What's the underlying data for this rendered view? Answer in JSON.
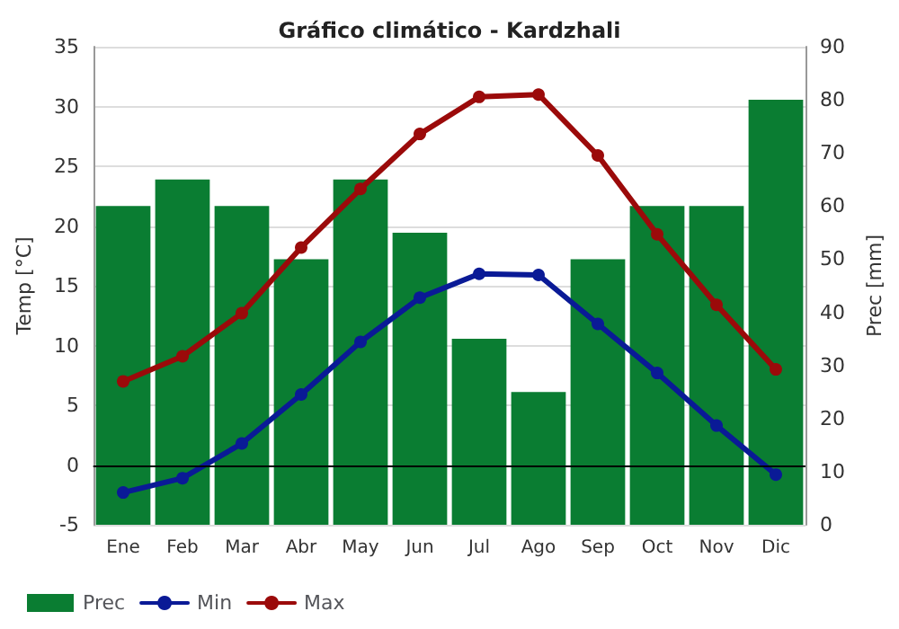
{
  "chart_data": {
    "type": "line",
    "title": "Gráfico climático - Kardzhali",
    "ylabel": "Temp [°C]",
    "y2label": "Prec [mm]",
    "categories": [
      "Ene",
      "Feb",
      "Mar",
      "Abr",
      "May",
      "Jun",
      "Jul",
      "Ago",
      "Sep",
      "Oct",
      "Nov",
      "Dic"
    ],
    "series": [
      {
        "name": "Prec",
        "type": "bar",
        "axis": "y2",
        "color": "#0a7d32",
        "values": [
          60,
          65,
          60,
          50,
          65,
          55,
          35,
          25,
          50,
          60,
          60,
          80
        ]
      },
      {
        "name": "Min",
        "color": "#0a1a96",
        "values": [
          -2.3,
          -1.1,
          1.8,
          5.9,
          10.3,
          14,
          16,
          15.9,
          11.8,
          7.7,
          3.3,
          -0.8
        ]
      },
      {
        "name": "Max",
        "color": "#9b0a0a",
        "values": [
          7,
          9.1,
          12.7,
          18.2,
          23.1,
          27.7,
          30.8,
          31,
          25.9,
          19.3,
          13.4,
          8
        ]
      }
    ],
    "ylim": [
      -5,
      35
    ],
    "yticks": [
      -5,
      0,
      5,
      10,
      15,
      20,
      25,
      30,
      35
    ],
    "y2lim": [
      0,
      90
    ],
    "y2ticks": [
      0,
      10,
      20,
      30,
      40,
      50,
      60,
      70,
      80,
      90
    ],
    "ref_lines": [
      {
        "axis": "y",
        "value": 0,
        "color": "#000000"
      }
    ],
    "grid": "y",
    "legend": "bottom left",
    "marker": "circle",
    "line_style": "solid"
  }
}
